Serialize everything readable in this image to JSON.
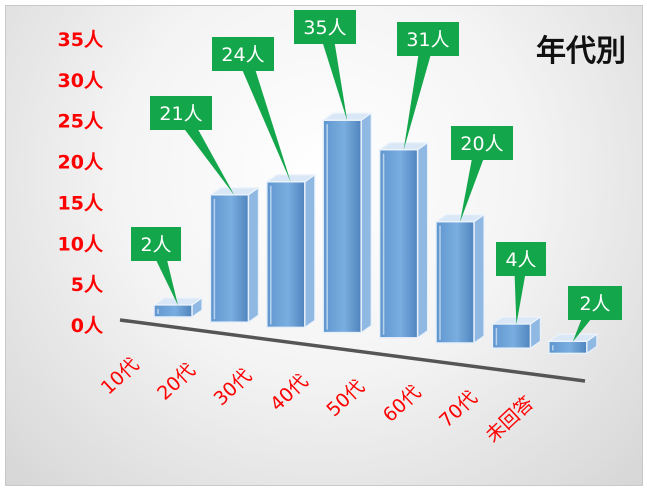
{
  "chart_data": {
    "type": "bar",
    "title": "年代別",
    "categories": [
      "10代",
      "20代",
      "30代",
      "40代",
      "50代",
      "60代",
      "70代",
      "未回答"
    ],
    "values": [
      2,
      21,
      24,
      35,
      31,
      20,
      4,
      2
    ],
    "value_suffix": "人",
    "ylim": [
      0,
      35
    ],
    "yticks": [
      0,
      5,
      10,
      15,
      20,
      25,
      30,
      35
    ],
    "ytick_labels": [
      "0人",
      "5人",
      "10人",
      "15人",
      "20人",
      "25人",
      "30人",
      "35人"
    ],
    "data_labels": [
      "2人",
      "21人",
      "24人",
      "35人",
      "31人",
      "20人",
      "4人",
      "2人"
    ],
    "grid": false,
    "legend": "none",
    "colors": {
      "bar_front": "#6a9fd4",
      "bar_side": "#8fb8e2",
      "bar_top": "#d9e7f6",
      "callout": "#14a64a",
      "tick_text": "#ff0000"
    }
  }
}
